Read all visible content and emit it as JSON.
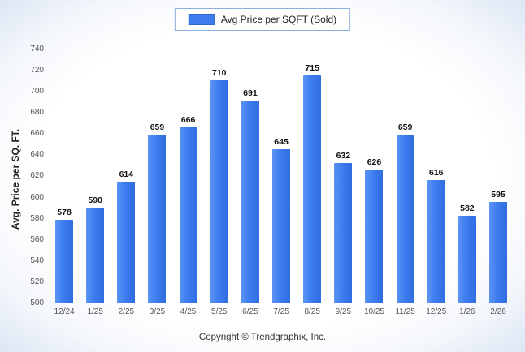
{
  "legend": {
    "label": "Avg Price per SQFT (Sold)"
  },
  "footer": {
    "text": "Copyright © Trendgraphix, Inc."
  },
  "colors": {
    "bar": "#3d7df0",
    "legend_border": "#8ab0dc",
    "value_label": "#111111",
    "tick_label": "#555555"
  },
  "chart_data": {
    "type": "bar",
    "title": "Avg Price per SQFT (Sold)",
    "categories": [
      "12/24",
      "1/25",
      "2/25",
      "3/25",
      "4/25",
      "5/25",
      "6/25",
      "7/25",
      "8/25",
      "9/25",
      "10/25",
      "11/25",
      "12/25",
      "1/26",
      "2/26"
    ],
    "values": [
      578,
      590,
      614,
      659,
      666,
      710,
      691,
      645,
      715,
      632,
      626,
      659,
      616,
      582,
      595
    ],
    "xlabel": "",
    "ylabel": "Avg. Price per SQ. FT.",
    "ylim": [
      500,
      740
    ],
    "yticks": [
      500,
      520,
      540,
      560,
      580,
      600,
      620,
      640,
      660,
      680,
      700,
      720,
      740
    ],
    "grid": false,
    "legend_position": "top",
    "data_labels": true
  }
}
